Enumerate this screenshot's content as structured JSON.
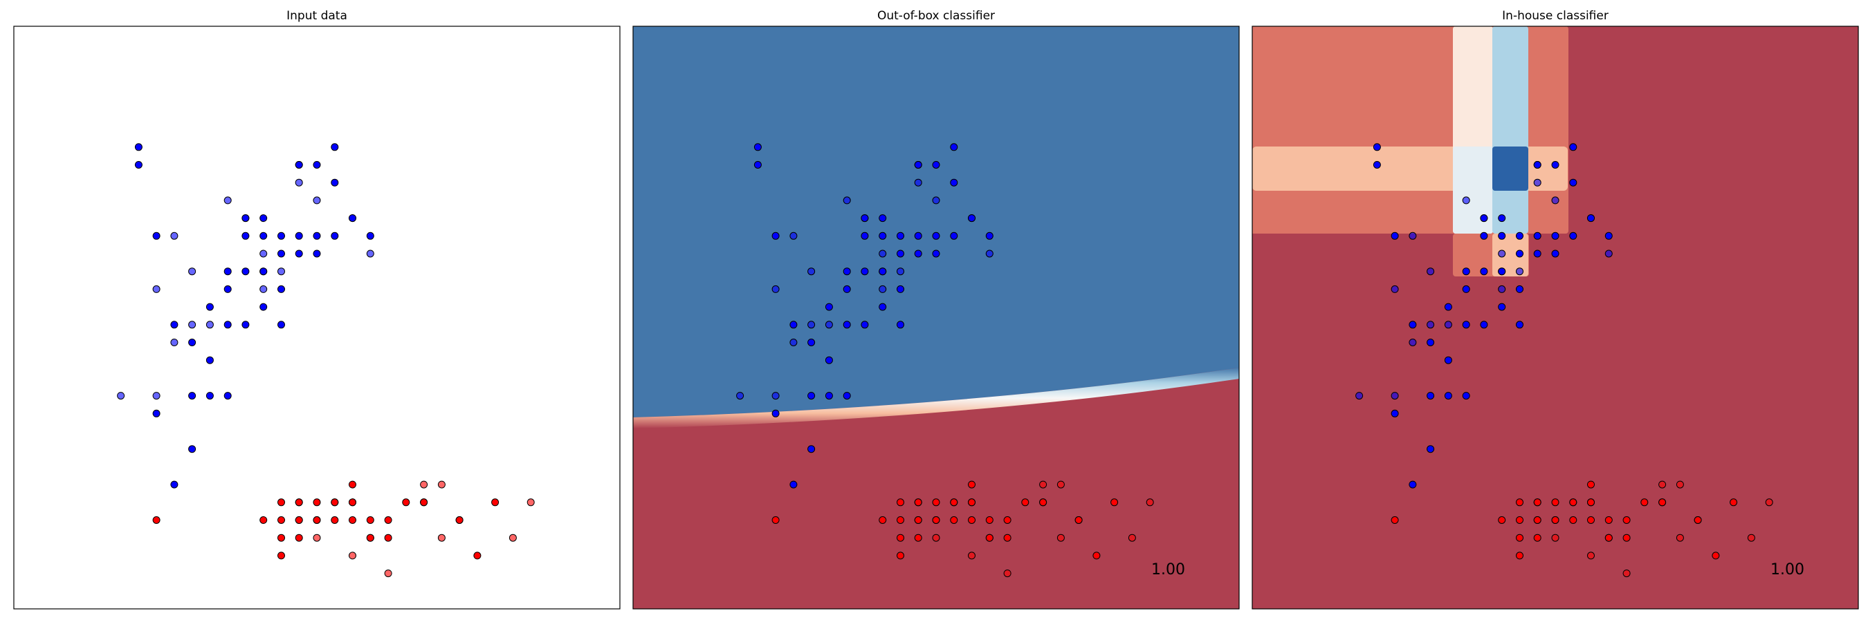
{
  "chart_data": [
    {
      "type": "scatter",
      "title": "Input data",
      "xlabel": "",
      "ylabel": "",
      "xlim": [
        0,
        34
      ],
      "ylim": [
        0,
        32.8
      ],
      "grid": false,
      "show_ticks": false,
      "score": "",
      "background": "none"
    },
    {
      "type": "scatter",
      "title": "Out-of-box classifier",
      "xlabel": "",
      "ylabel": "",
      "xlim": [
        0,
        34
      ],
      "ylim": [
        0,
        32.8
      ],
      "grid": false,
      "show_ticks": false,
      "score": "1.00",
      "background": "smooth-boundary"
    },
    {
      "type": "scatter",
      "title": "In-house classifier",
      "xlabel": "",
      "ylabel": "",
      "xlim": [
        0,
        34
      ],
      "ylim": [
        0,
        32.8
      ],
      "grid": false,
      "show_ticks": false,
      "score": "1.00",
      "background": "tree-regions"
    }
  ],
  "colors": {
    "class_blue": "#0000ff",
    "class_red": "#ff0000",
    "region_blue": "#4477aa",
    "region_red": "#ae4050",
    "region_salmon": "#dc7466",
    "region_peach": "#f7bea0",
    "region_cream": "#fbe9de",
    "region_ice": "#e5eef3",
    "region_lightblue": "#add3e6",
    "region_darkblue": "#2b62a6"
  },
  "points": {
    "blue_train": [
      [
        8,
        11
      ],
      [
        9,
        7
      ],
      [
        10,
        9
      ],
      [
        10,
        12
      ],
      [
        11,
        14
      ],
      [
        11,
        17
      ],
      [
        12,
        12
      ],
      [
        12,
        16
      ],
      [
        13,
        16
      ],
      [
        13,
        19
      ],
      [
        13,
        21
      ],
      [
        13,
        22
      ],
      [
        14,
        17
      ],
      [
        14,
        19
      ],
      [
        14,
        21
      ],
      [
        14,
        22
      ],
      [
        15,
        18
      ],
      [
        15,
        20
      ],
      [
        15,
        21
      ],
      [
        16,
        20
      ],
      [
        16,
        21
      ],
      [
        17,
        21
      ],
      [
        18,
        21
      ],
      [
        7,
        26
      ],
      [
        7,
        25
      ],
      [
        9,
        16
      ],
      [
        12,
        18
      ],
      [
        15,
        16
      ],
      [
        16,
        25
      ],
      [
        17,
        25
      ],
      [
        18,
        24
      ],
      [
        19,
        22
      ],
      [
        20,
        21
      ],
      [
        18,
        26
      ],
      [
        17,
        20
      ],
      [
        19,
        22
      ],
      [
        12,
        19
      ],
      [
        8,
        21
      ],
      [
        10,
        15
      ],
      [
        11,
        12
      ]
    ],
    "blue_test": [
      [
        6,
        12
      ],
      [
        8,
        12
      ],
      [
        9,
        15
      ],
      [
        10,
        16
      ],
      [
        10,
        19
      ],
      [
        11,
        16
      ],
      [
        12,
        23
      ],
      [
        13,
        22
      ],
      [
        14,
        18
      ],
      [
        14,
        19
      ],
      [
        14,
        20
      ],
      [
        15,
        19
      ],
      [
        16,
        25
      ],
      [
        16,
        24
      ],
      [
        17,
        23
      ],
      [
        20,
        20
      ],
      [
        8,
        18
      ],
      [
        9,
        21
      ]
    ],
    "red_train": [
      [
        8,
        5
      ],
      [
        14,
        5
      ],
      [
        15,
        4
      ],
      [
        15,
        6
      ],
      [
        15,
        5
      ],
      [
        16,
        5
      ],
      [
        16,
        6
      ],
      [
        17,
        5
      ],
      [
        18,
        5
      ],
      [
        19,
        6
      ],
      [
        19,
        5
      ],
      [
        20,
        5
      ],
      [
        20,
        4
      ],
      [
        21,
        5
      ],
      [
        22,
        6
      ],
      [
        23,
        6
      ],
      [
        25,
        5
      ],
      [
        26,
        3
      ],
      [
        27,
        6
      ],
      [
        19,
        7
      ],
      [
        17,
        6
      ],
      [
        16,
        5
      ],
      [
        15,
        3
      ],
      [
        21,
        4
      ],
      [
        16,
        4
      ],
      [
        18,
        6
      ],
      [
        20,
        4
      ]
    ],
    "red_test": [
      [
        16,
        6
      ],
      [
        17,
        4
      ],
      [
        17,
        5
      ],
      [
        18,
        6
      ],
      [
        19,
        6
      ],
      [
        19,
        3
      ],
      [
        21,
        2
      ],
      [
        23,
        7
      ],
      [
        23,
        6
      ],
      [
        24,
        7
      ],
      [
        24,
        4
      ],
      [
        28,
        4
      ],
      [
        29,
        6
      ],
      [
        25,
        5
      ]
    ]
  }
}
